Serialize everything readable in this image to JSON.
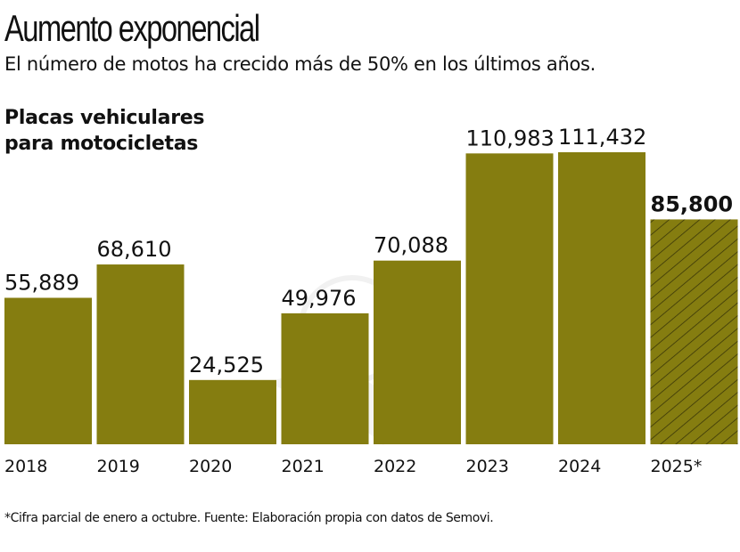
{
  "title": "Aumento exponencial",
  "subtitle": "El número de motos ha crecido más de 50% en los últimos años.",
  "footnote": "*Cifra parcial de enero a octubre. Fuente: Elaboración propia con datos de Semovi.",
  "chart_data": {
    "type": "bar",
    "title": "Placas vehiculares para motocicletas",
    "categories": [
      "2018",
      "2019",
      "2020",
      "2021",
      "2022",
      "2023",
      "2024",
      "2025*"
    ],
    "values": [
      55889,
      68610,
      24525,
      49976,
      70088,
      110983,
      111432,
      85800
    ],
    "data_labels": [
      "55,889",
      "68,610",
      "24,525",
      "49,976",
      "70,088",
      "110,983",
      "111,432",
      "85,800"
    ],
    "highlight_index": 7,
    "highlight_style": "hatched, bold label (partial year)",
    "bar_color": "#857d10",
    "hatch_color": "#3a3608",
    "grid": false,
    "legend": "none",
    "ylim": [
      0,
      111432
    ]
  }
}
